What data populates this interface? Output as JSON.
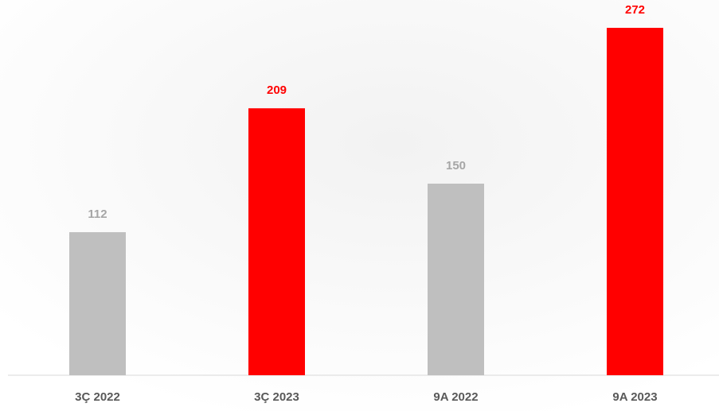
{
  "chart_data": {
    "type": "bar",
    "categories": [
      "3Ç 2022",
      "3Ç 2023",
      "9A 2022",
      "9A 2023"
    ],
    "values": [
      112,
      209,
      150,
      272
    ],
    "colors": [
      "#bfbfbf",
      "#ff0000",
      "#bfbfbf",
      "#ff0000"
    ],
    "label_colors": [
      "#a6a6a6",
      "#ff0000",
      "#a6a6a6",
      "#ff0000"
    ],
    "grid": false
  }
}
